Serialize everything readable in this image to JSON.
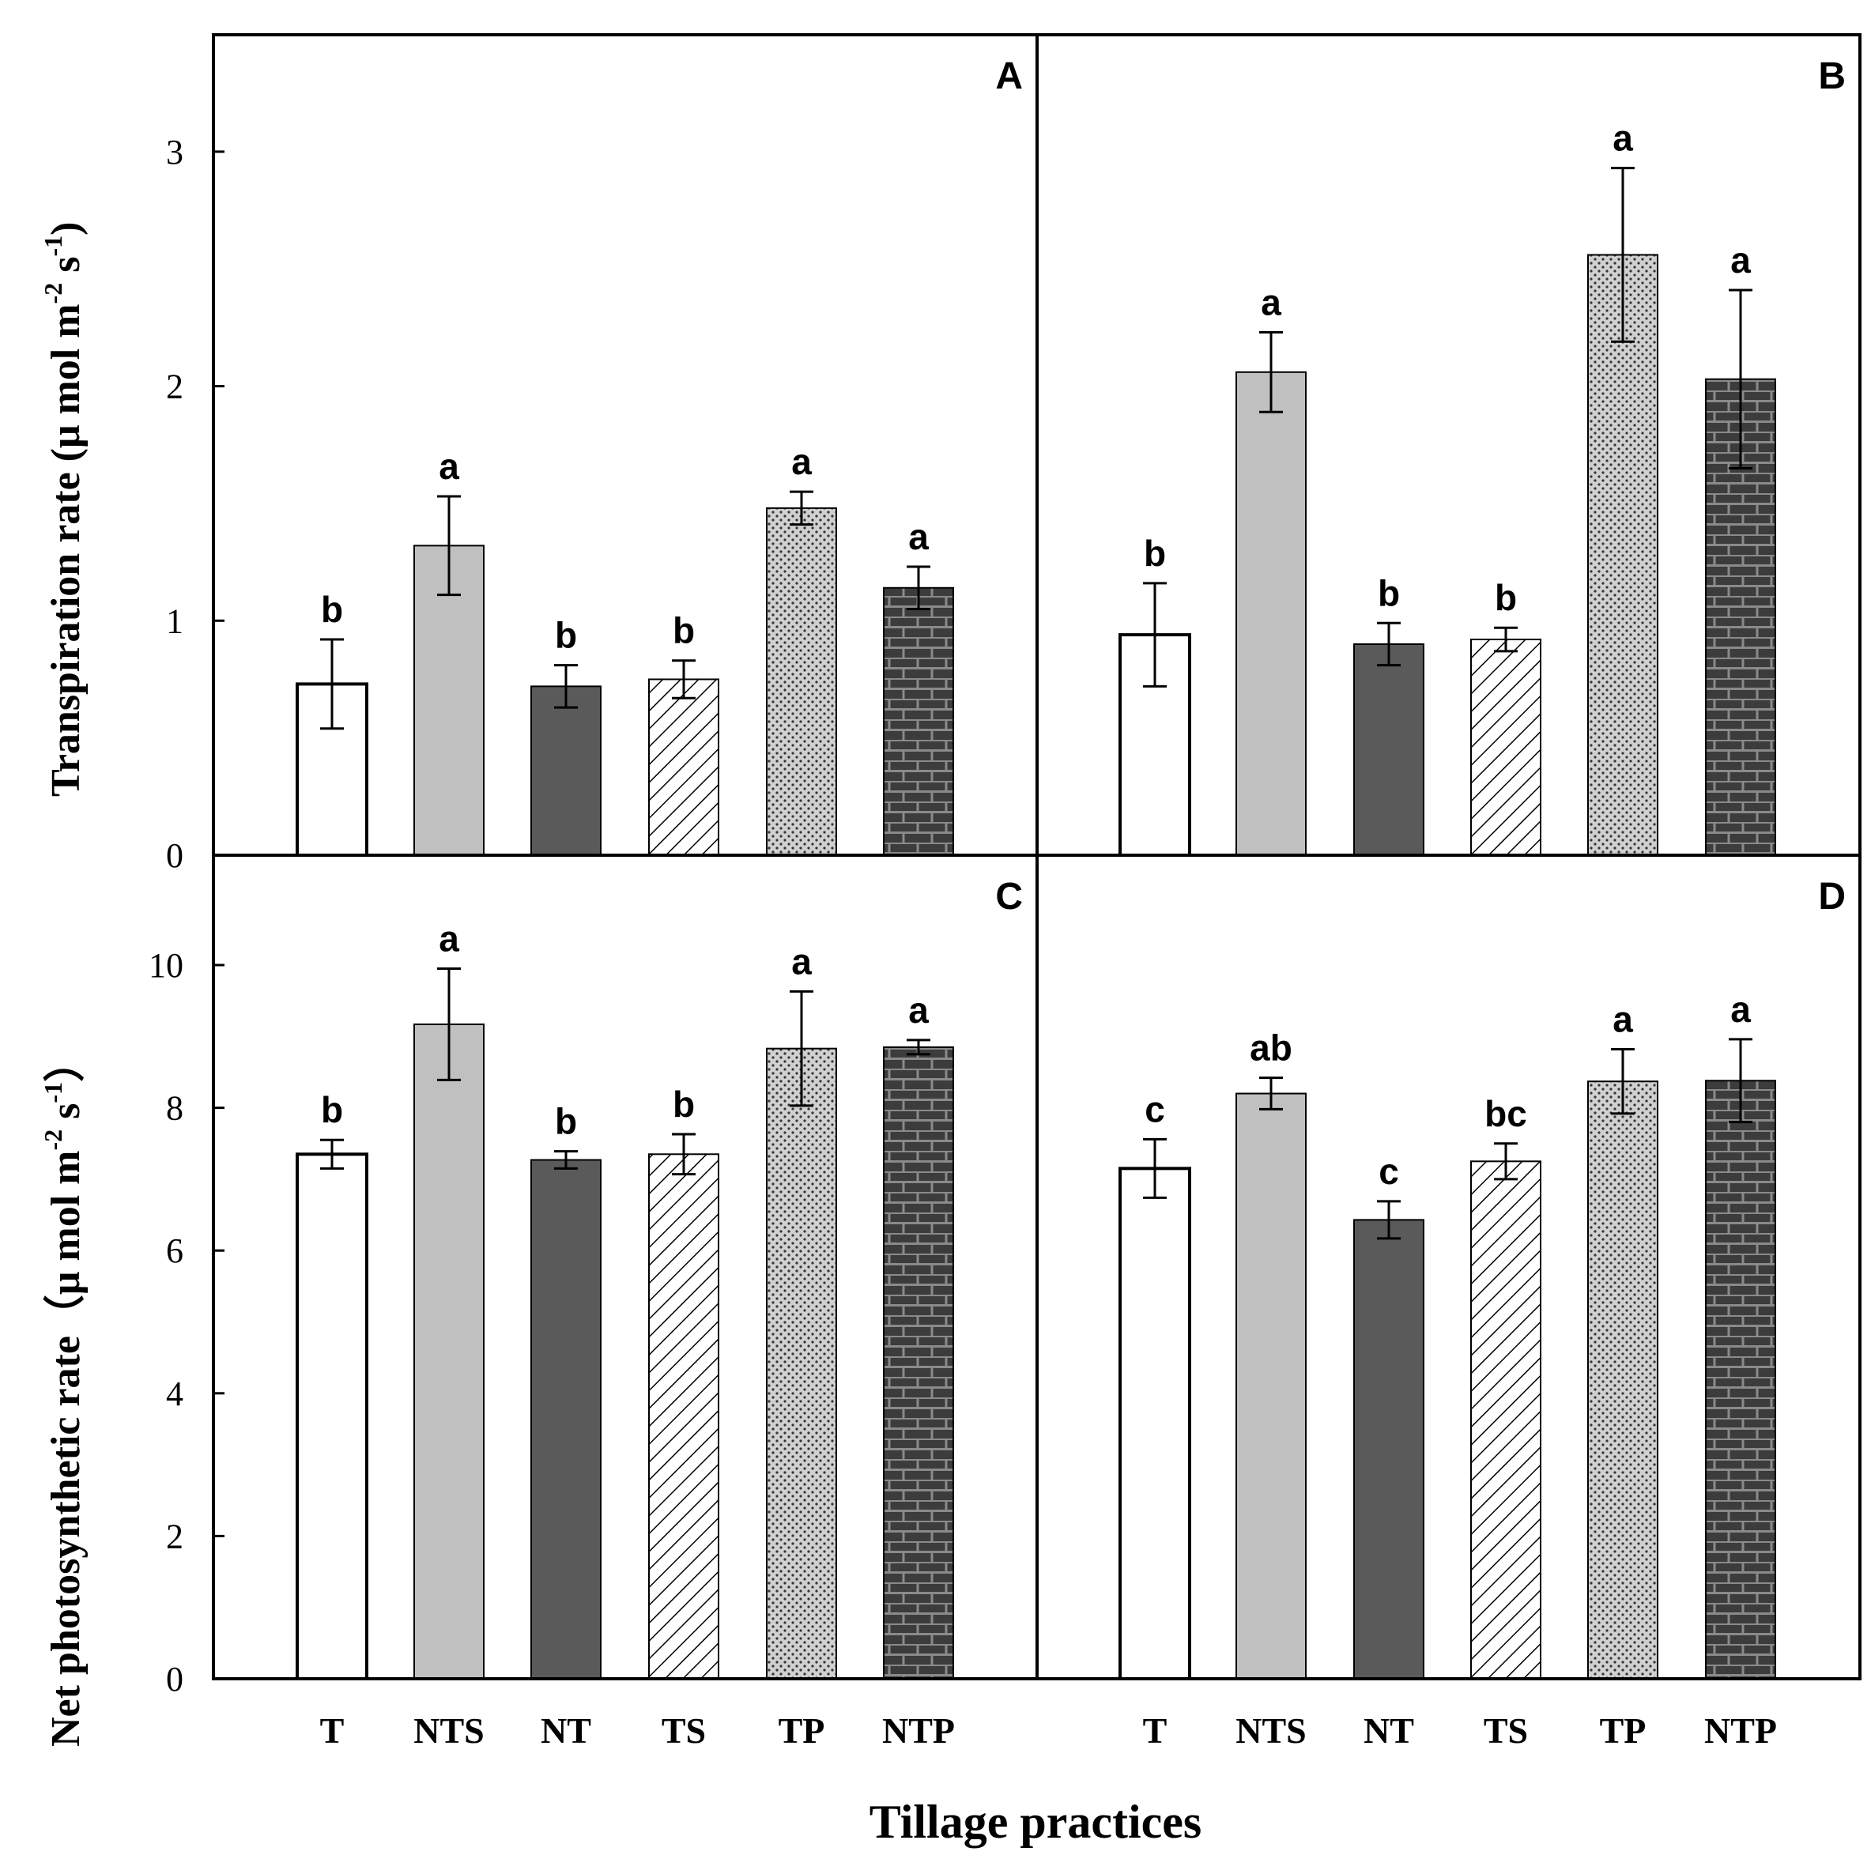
{
  "figure": {
    "xlabel": "Tillage practices",
    "ylabel_top": "Transpiration rate（μ mol m-2 s-1）",
    "ylabel_top_parts": {
      "main": "Transpiration rate (μ mol m",
      "exp1": "-2",
      "mid": " s",
      "exp2": "-1",
      "end": ")"
    },
    "ylabel_bottom": "Net photosynthetic rate（μ mol m-2 s-1）",
    "ylabel_bottom_parts": {
      "main": "Net photosynthetic rate（μ mol m",
      "exp1": "-2",
      "mid": " s",
      "exp2": "-1",
      "end": "）"
    },
    "colors": {
      "frame": "#000000",
      "T": "#ffffff",
      "NTS": "#c0c0c0",
      "NT": "#5a5a5a",
      "TS_hatch": "#000000",
      "TP_fill": "#d0d0d0",
      "NTP_fill": "#3c3c3c",
      "NTP_brick_line": "#8a8a8a"
    }
  },
  "chart_data": [
    {
      "panel": "A",
      "type": "bar",
      "categories": [
        "T",
        "NTS",
        "NT",
        "TS",
        "TP",
        "NTP"
      ],
      "values": [
        0.73,
        1.32,
        0.72,
        0.75,
        1.48,
        1.14
      ],
      "errors": [
        0.19,
        0.21,
        0.09,
        0.08,
        0.07,
        0.09
      ],
      "letters": [
        "b",
        "a",
        "b",
        "b",
        "a",
        "a"
      ],
      "ylim": [
        0,
        3.5
      ],
      "yticks": [
        "0",
        "1",
        "2",
        "3"
      ],
      "ytick_values": [
        0,
        1,
        2,
        3
      ]
    },
    {
      "panel": "B",
      "type": "bar",
      "categories": [
        "T",
        "NTS",
        "NT",
        "TS",
        "TP",
        "NTP"
      ],
      "values": [
        0.94,
        2.06,
        0.9,
        0.92,
        2.56,
        2.03
      ],
      "errors": [
        0.22,
        0.17,
        0.09,
        0.05,
        0.37,
        0.38
      ],
      "letters": [
        "b",
        "a",
        "b",
        "b",
        "a",
        "a"
      ],
      "ylim": [
        0,
        3.5
      ]
    },
    {
      "panel": "C",
      "type": "bar",
      "categories": [
        "T",
        "NTS",
        "NT",
        "TS",
        "TP",
        "NTP"
      ],
      "values": [
        7.35,
        9.17,
        7.27,
        7.35,
        8.83,
        8.85
      ],
      "errors": [
        0.2,
        0.78,
        0.12,
        0.28,
        0.8,
        0.1
      ],
      "letters": [
        "b",
        "a",
        "b",
        "b",
        "a",
        "a"
      ],
      "ylim": [
        0,
        11
      ],
      "yticks": [
        "0",
        "2",
        "4",
        "6",
        "8",
        "10"
      ],
      "ytick_values": [
        0,
        2,
        4,
        6,
        8,
        10
      ]
    },
    {
      "panel": "D",
      "type": "bar",
      "categories": [
        "T",
        "NTS",
        "NT",
        "TS",
        "TP",
        "NTP"
      ],
      "values": [
        7.15,
        8.2,
        6.43,
        7.25,
        8.37,
        8.38
      ],
      "errors": [
        0.41,
        0.22,
        0.26,
        0.25,
        0.45,
        0.58
      ],
      "letters": [
        "c",
        "ab",
        "c",
        "bc",
        "a",
        "a"
      ],
      "ylim": [
        0,
        11
      ]
    }
  ]
}
